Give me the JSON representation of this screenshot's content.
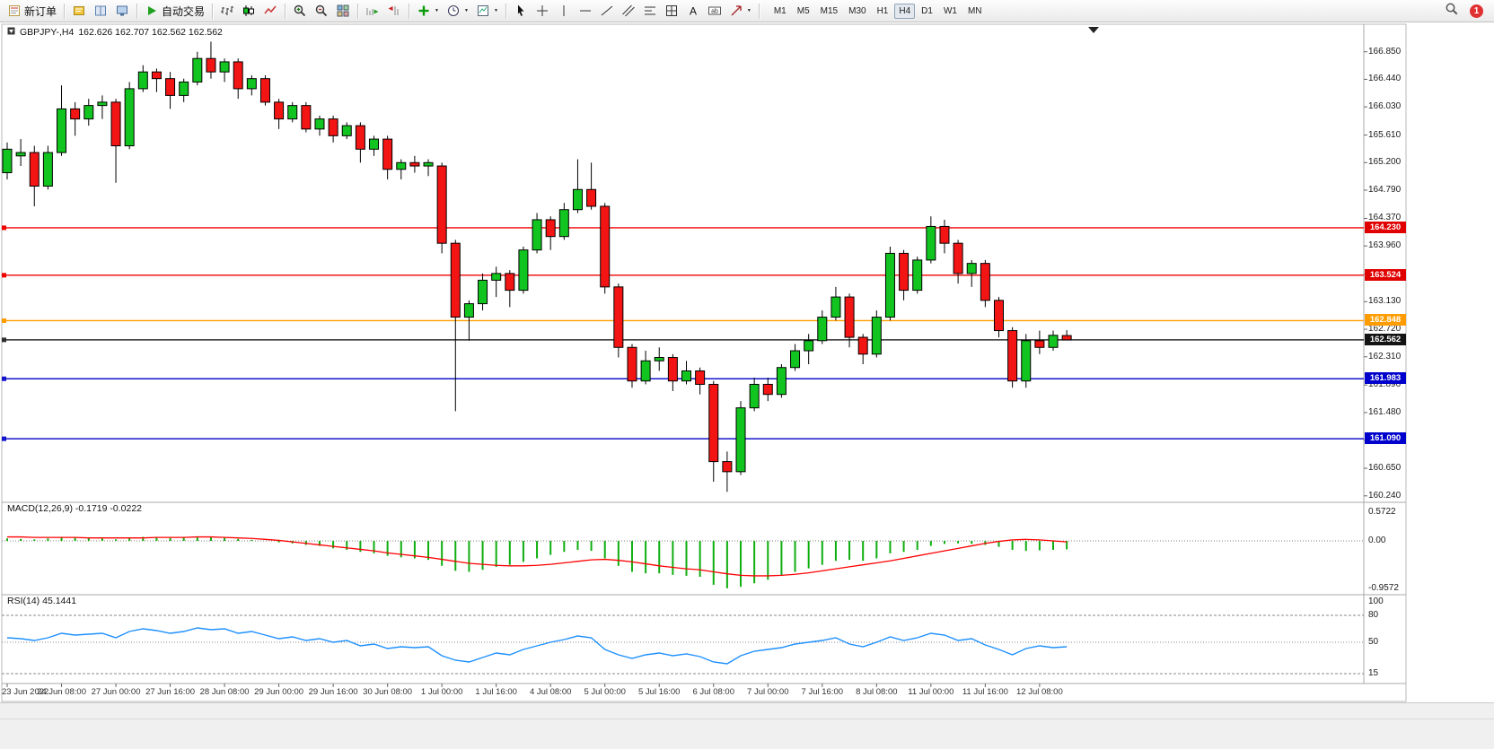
{
  "toolbar": {
    "active_timeframe": "H4",
    "timeframes": [
      "M1",
      "M5",
      "M15",
      "M30",
      "H1",
      "H4",
      "D1",
      "W1",
      "MN"
    ],
    "notification_count": "1",
    "groups": [
      {
        "items": [
          {
            "name": "new-order-button",
            "icon": "form",
            "label": "新订单"
          }
        ]
      },
      {
        "items": [
          {
            "name": "metaeditor-button",
            "icon": "editor"
          },
          {
            "name": "market-watch-button",
            "icon": "book"
          },
          {
            "name": "navigator-button",
            "icon": "monitor"
          }
        ]
      },
      {
        "items": [
          {
            "name": "auto-trading-button",
            "icon": "play",
            "label": "自动交易"
          }
        ]
      },
      {
        "items": [
          {
            "name": "bar-chart-button",
            "icon": "bars"
          },
          {
            "name": "candlestick-chart-button",
            "icon": "candle"
          },
          {
            "name": "line-chart-button",
            "icon": "linechart"
          }
        ]
      },
      {
        "items": [
          {
            "name": "zoom-in-button",
            "icon": "zoomin"
          },
          {
            "name": "zoom-out-button",
            "icon": "zoomout"
          },
          {
            "name": "tile-windows-button",
            "icon": "tiles"
          }
        ]
      },
      {
        "items": [
          {
            "name": "auto-scroll-button",
            "icon": "autoscroll"
          },
          {
            "name": "chart-shift-button",
            "icon": "shift"
          }
        ]
      },
      {
        "items": [
          {
            "name": "indicators-button",
            "icon": "plus",
            "caret": true
          },
          {
            "name": "periods-button",
            "icon": "clock",
            "caret": true
          },
          {
            "name": "templates-button",
            "icon": "template",
            "caret": true
          }
        ]
      },
      {
        "items": [
          {
            "name": "cursor-button",
            "icon": "cursor"
          },
          {
            "name": "crosshair-button",
            "icon": "cross"
          },
          {
            "name": "vertical-line-button",
            "icon": "vline"
          },
          {
            "name": "horizontal-line-button",
            "icon": "hline"
          },
          {
            "name": "trendline-button",
            "icon": "trend"
          },
          {
            "name": "channel-button",
            "icon": "channel"
          },
          {
            "name": "fibonacci-button",
            "icon": "fibo"
          },
          {
            "name": "grid-button",
            "icon": "grid"
          },
          {
            "name": "text-button",
            "icon": "textA"
          },
          {
            "name": "text-label-button",
            "icon": "labelT"
          },
          {
            "name": "arrows-button",
            "icon": "arrows",
            "caret": true
          }
        ]
      }
    ]
  },
  "chart": {
    "symbol_title": "GBPJPY-,H4",
    "ohlc_text": "162.626 162.707 162.562 162.562"
  },
  "chart_data": {
    "type": "candlestick",
    "symbol": "GBPJPY-",
    "period": "H4",
    "title": "GBPJPY-,H4 162.626 162.707 162.562 162.562",
    "ohlc_display": {
      "open": "162.626",
      "high": "162.707",
      "low": "162.562",
      "close": "162.562"
    },
    "up_color": "#12c41f",
    "down_color": "#f31414",
    "outline_color": "#000000",
    "price_axis": {
      "tick_labels": [
        "166.850",
        "166.440",
        "166.030",
        "165.610",
        "165.200",
        "164.790",
        "164.370",
        "163.960",
        "163.540",
        "163.130",
        "162.720",
        "162.310",
        "161.890",
        "161.480",
        "161.070",
        "160.650",
        "160.240"
      ],
      "min": 160.2,
      "max": 167.22
    },
    "time_axis": {
      "bars_per_label": 4,
      "labels": [
        "23 Jun 2022",
        "24 Jun 08:00",
        "27 Jun 00:00",
        "27 Jun 16:00",
        "28 Jun 08:00",
        "29 Jun 00:00",
        "29 Jun 16:00",
        "30 Jun 08:00",
        "1 Jul 00:00",
        "1 Jul 16:00",
        "4 Jul 08:00",
        "5 Jul 00:00",
        "5 Jul 16:00",
        "6 Jul 08:00",
        "7 Jul 00:00",
        "7 Jul 16:00",
        "8 Jul 08:00",
        "11 Jul 00:00",
        "11 Jul 16:00",
        "12 Jul 08:00"
      ]
    },
    "hlines": [
      {
        "price": 164.23,
        "label": "164.230",
        "color": "#f00000",
        "badge_color": "#e00000"
      },
      {
        "price": 163.524,
        "label": "163.524",
        "color": "#f00000",
        "badge_color": "#e00000"
      },
      {
        "price": 162.848,
        "label": "162.848",
        "color": "#ff9d00",
        "badge_color": "#ff9d00"
      },
      {
        "price": 162.562,
        "label": "162.562",
        "color": "#2e2e2e",
        "badge_color": "#141414",
        "note": "current price"
      },
      {
        "price": 161.983,
        "label": "161.983",
        "color": "#1414cc",
        "badge_color": "#0000cc"
      },
      {
        "price": 161.09,
        "label": "161.090",
        "color": "#1414cc",
        "badge_color": "#0000cc"
      }
    ],
    "candles": [
      [
        165.05,
        165.5,
        164.95,
        165.4
      ],
      [
        165.3,
        165.55,
        165.15,
        165.35
      ],
      [
        165.35,
        165.45,
        164.55,
        164.85
      ],
      [
        164.85,
        165.45,
        164.8,
        165.35
      ],
      [
        165.35,
        166.35,
        165.3,
        166.0
      ],
      [
        166.0,
        166.1,
        165.6,
        165.85
      ],
      [
        165.85,
        166.15,
        165.75,
        166.05
      ],
      [
        166.05,
        166.2,
        165.85,
        166.1
      ],
      [
        166.1,
        166.15,
        164.9,
        165.45
      ],
      [
        165.45,
        166.4,
        165.4,
        166.3
      ],
      [
        166.3,
        166.65,
        166.25,
        166.55
      ],
      [
        166.55,
        166.6,
        166.25,
        166.45
      ],
      [
        166.45,
        166.55,
        166.0,
        166.2
      ],
      [
        166.2,
        166.45,
        166.1,
        166.4
      ],
      [
        166.4,
        166.85,
        166.35,
        166.75
      ],
      [
        166.75,
        167.0,
        166.45,
        166.55
      ],
      [
        166.55,
        166.75,
        166.4,
        166.7
      ],
      [
        166.7,
        166.75,
        166.15,
        166.3
      ],
      [
        166.3,
        166.5,
        166.2,
        166.45
      ],
      [
        166.45,
        166.5,
        166.05,
        166.1
      ],
      [
        166.1,
        166.15,
        165.7,
        165.85
      ],
      [
        165.85,
        166.1,
        165.8,
        166.05
      ],
      [
        166.05,
        166.1,
        165.65,
        165.7
      ],
      [
        165.7,
        165.9,
        165.6,
        165.85
      ],
      [
        165.85,
        165.9,
        165.5,
        165.6
      ],
      [
        165.6,
        165.8,
        165.55,
        165.75
      ],
      [
        165.75,
        165.8,
        165.2,
        165.4
      ],
      [
        165.4,
        165.6,
        165.3,
        165.55
      ],
      [
        165.55,
        165.6,
        164.95,
        165.1
      ],
      [
        165.1,
        165.25,
        164.95,
        165.2
      ],
      [
        165.2,
        165.3,
        165.05,
        165.15
      ],
      [
        165.15,
        165.25,
        165.0,
        165.2
      ],
      [
        165.15,
        165.2,
        163.85,
        164.0
      ],
      [
        164.0,
        164.05,
        161.5,
        162.9
      ],
      [
        162.9,
        163.15,
        162.55,
        163.1
      ],
      [
        163.1,
        163.55,
        163.0,
        163.45
      ],
      [
        163.45,
        163.65,
        163.2,
        163.55
      ],
      [
        163.55,
        163.6,
        163.05,
        163.3
      ],
      [
        163.3,
        163.95,
        163.25,
        163.9
      ],
      [
        163.9,
        164.45,
        163.85,
        164.35
      ],
      [
        164.35,
        164.4,
        163.9,
        164.1
      ],
      [
        164.1,
        164.6,
        164.05,
        164.5
      ],
      [
        164.5,
        165.25,
        164.45,
        164.8
      ],
      [
        164.8,
        165.2,
        164.5,
        164.55
      ],
      [
        164.55,
        164.6,
        163.25,
        163.35
      ],
      [
        163.35,
        163.4,
        162.3,
        162.45
      ],
      [
        162.45,
        162.5,
        161.85,
        161.95
      ],
      [
        161.95,
        162.4,
        161.9,
        162.25
      ],
      [
        162.25,
        162.45,
        162.1,
        162.3
      ],
      [
        162.3,
        162.35,
        161.8,
        161.95
      ],
      [
        161.95,
        162.25,
        161.9,
        162.1
      ],
      [
        162.1,
        162.15,
        161.75,
        161.9
      ],
      [
        161.9,
        161.95,
        160.45,
        160.75
      ],
      [
        160.75,
        160.9,
        160.3,
        160.6
      ],
      [
        160.6,
        161.65,
        160.55,
        161.55
      ],
      [
        161.55,
        162.0,
        161.5,
        161.9
      ],
      [
        161.9,
        162.0,
        161.65,
        161.75
      ],
      [
        161.75,
        162.2,
        161.7,
        162.15
      ],
      [
        162.15,
        162.5,
        162.1,
        162.4
      ],
      [
        162.4,
        162.65,
        162.2,
        162.55
      ],
      [
        162.55,
        163.0,
        162.5,
        162.9
      ],
      [
        162.9,
        163.35,
        162.85,
        163.2
      ],
      [
        163.2,
        163.25,
        162.45,
        162.6
      ],
      [
        162.6,
        162.65,
        162.2,
        162.35
      ],
      [
        162.35,
        163.0,
        162.3,
        162.9
      ],
      [
        162.9,
        163.95,
        162.85,
        163.85
      ],
      [
        163.85,
        163.9,
        163.15,
        163.3
      ],
      [
        163.3,
        163.8,
        163.25,
        163.75
      ],
      [
        163.75,
        164.4,
        163.7,
        164.25
      ],
      [
        164.25,
        164.35,
        163.85,
        164.0
      ],
      [
        164.0,
        164.05,
        163.4,
        163.55
      ],
      [
        163.55,
        163.75,
        163.35,
        163.7
      ],
      [
        163.7,
        163.75,
        163.05,
        163.15
      ],
      [
        163.15,
        163.2,
        162.6,
        162.7
      ],
      [
        162.7,
        162.75,
        161.85,
        161.95
      ],
      [
        161.95,
        162.65,
        161.85,
        162.55
      ],
      [
        162.55,
        162.7,
        162.35,
        162.45
      ],
      [
        162.45,
        162.7,
        162.4,
        162.63
      ],
      [
        162.626,
        162.707,
        162.562,
        162.562
      ]
    ],
    "indicators": {
      "macd": {
        "label": "MACD(12,26,9)",
        "values_text": "-0.1719 -0.0222",
        "scale_labels": [
          "0.5722",
          "0.00",
          "-0.9572"
        ],
        "hist_color": "#0fae0f",
        "signal_color": "#ff0000",
        "histogram": [
          0.05,
          0.04,
          0.03,
          0.05,
          0.08,
          0.07,
          0.06,
          0.05,
          0.03,
          0.06,
          0.08,
          0.07,
          0.06,
          0.07,
          0.09,
          0.08,
          0.06,
          0.04,
          0.02,
          0.0,
          -0.03,
          -0.05,
          -0.08,
          -0.1,
          -0.15,
          -0.18,
          -0.22,
          -0.25,
          -0.3,
          -0.33,
          -0.35,
          -0.38,
          -0.5,
          -0.6,
          -0.62,
          -0.58,
          -0.52,
          -0.48,
          -0.42,
          -0.35,
          -0.28,
          -0.22,
          -0.18,
          -0.2,
          -0.35,
          -0.5,
          -0.62,
          -0.65,
          -0.65,
          -0.68,
          -0.7,
          -0.72,
          -0.88,
          -0.95,
          -0.92,
          -0.85,
          -0.78,
          -0.7,
          -0.62,
          -0.55,
          -0.48,
          -0.4,
          -0.38,
          -0.4,
          -0.35,
          -0.25,
          -0.22,
          -0.18,
          -0.1,
          -0.06,
          -0.05,
          -0.06,
          -0.08,
          -0.12,
          -0.18,
          -0.2,
          -0.19,
          -0.18,
          -0.17
        ],
        "signal": [
          0.08,
          0.08,
          0.07,
          0.07,
          0.07,
          0.07,
          0.06,
          0.06,
          0.06,
          0.06,
          0.06,
          0.07,
          0.07,
          0.07,
          0.08,
          0.08,
          0.07,
          0.06,
          0.05,
          0.03,
          0.01,
          -0.02,
          -0.05,
          -0.08,
          -0.11,
          -0.14,
          -0.17,
          -0.2,
          -0.24,
          -0.27,
          -0.3,
          -0.33,
          -0.37,
          -0.41,
          -0.45,
          -0.47,
          -0.49,
          -0.5,
          -0.5,
          -0.49,
          -0.47,
          -0.44,
          -0.41,
          -0.38,
          -0.37,
          -0.39,
          -0.42,
          -0.46,
          -0.5,
          -0.53,
          -0.56,
          -0.58,
          -0.62,
          -0.66,
          -0.69,
          -0.7,
          -0.7,
          -0.69,
          -0.67,
          -0.64,
          -0.6,
          -0.56,
          -0.52,
          -0.48,
          -0.44,
          -0.4,
          -0.35,
          -0.3,
          -0.25,
          -0.2,
          -0.15,
          -0.1,
          -0.05,
          -0.01,
          0.02,
          0.03,
          0.02,
          0.0,
          -0.02
        ]
      },
      "rsi": {
        "label": "RSI(14)",
        "value_text": "45.1441",
        "scale_labels": [
          "100",
          "80",
          "50",
          "15"
        ],
        "levels": [
          80,
          50,
          15
        ],
        "line_color": "#1E90FF",
        "values": [
          55,
          54,
          52,
          55,
          60,
          58,
          59,
          60,
          55,
          62,
          65,
          63,
          60,
          62,
          66,
          64,
          65,
          60,
          62,
          58,
          54,
          56,
          52,
          54,
          50,
          52,
          46,
          48,
          43,
          45,
          44,
          45,
          35,
          30,
          28,
          33,
          38,
          36,
          42,
          46,
          50,
          53,
          57,
          55,
          42,
          36,
          32,
          36,
          38,
          35,
          37,
          34,
          28,
          26,
          35,
          40,
          42,
          44,
          48,
          50,
          52,
          55,
          48,
          45,
          50,
          56,
          52,
          55,
          60,
          58,
          52,
          54,
          47,
          42,
          36,
          43,
          46,
          44,
          45
        ]
      }
    }
  }
}
